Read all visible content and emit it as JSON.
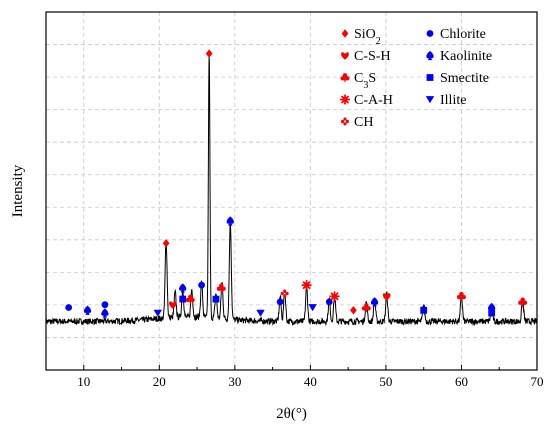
{
  "chart_data": {
    "type": "line",
    "xlabel": "2θ(°)",
    "ylabel": "Intensity",
    "xlim": [
      5,
      70
    ],
    "ylim": [
      0,
      100
    ],
    "x_ticks": [
      10,
      20,
      30,
      40,
      50,
      60,
      70
    ],
    "grid": true,
    "legend_position": "top-right",
    "colors": {
      "red": "#ff0000",
      "blue": "#0000ff",
      "line": "#000000"
    },
    "series": [
      {
        "peaks": [
          {
            "x": 20.9,
            "y": 28
          },
          {
            "x": 26.6,
            "y": 96
          },
          {
            "x": 29.4,
            "y": 35
          },
          {
            "x": 22.1,
            "y": 9
          },
          {
            "x": 23.1,
            "y": 10
          },
          {
            "x": 24.3,
            "y": 10
          },
          {
            "x": 25.6,
            "y": 13
          },
          {
            "x": 27.5,
            "y": 9
          },
          {
            "x": 28.3,
            "y": 13
          },
          {
            "x": 36.0,
            "y": 9
          },
          {
            "x": 36.6,
            "y": 11
          },
          {
            "x": 39.5,
            "y": 13
          },
          {
            "x": 42.5,
            "y": 8
          },
          {
            "x": 43.2,
            "y": 9
          },
          {
            "x": 47.4,
            "y": 7
          },
          {
            "x": 48.5,
            "y": 8
          },
          {
            "x": 50.1,
            "y": 10
          },
          {
            "x": 55.0,
            "y": 6
          },
          {
            "x": 60.0,
            "y": 9
          },
          {
            "x": 64.0,
            "y": 6
          },
          {
            "x": 68.1,
            "y": 8
          }
        ]
      }
    ],
    "markers": [
      {
        "phase": "Chlorite",
        "x": 8.0,
        "y": 7
      },
      {
        "phase": "Kaolinite",
        "x": 10.5,
        "y": 6
      },
      {
        "phase": "Chlorite",
        "x": 12.8,
        "y": 8
      },
      {
        "phase": "Kaolinite",
        "x": 12.8,
        "y": 5
      },
      {
        "phase": "Illite",
        "x": 19.8,
        "y": 5
      },
      {
        "phase": "SiO2",
        "x": 20.9,
        "y": 30
      },
      {
        "phase": "C-S-H",
        "x": 21.8,
        "y": 8
      },
      {
        "phase": "Kaolinite",
        "x": 23.1,
        "y": 14
      },
      {
        "phase": "Smectite",
        "x": 23.1,
        "y": 10
      },
      {
        "phase": "C3S",
        "x": 24.1,
        "y": 10
      },
      {
        "phase": "Chlorite",
        "x": 25.6,
        "y": 15
      },
      {
        "phase": "SiO2",
        "x": 26.6,
        "y": 98
      },
      {
        "phase": "Smectite",
        "x": 27.5,
        "y": 10
      },
      {
        "phase": "C3S",
        "x": 28.2,
        "y": 14
      },
      {
        "phase": "Kaolinite",
        "x": 29.4,
        "y": 38
      },
      {
        "phase": "Illite",
        "x": 33.4,
        "y": 5
      },
      {
        "phase": "Chlorite",
        "x": 36.0,
        "y": 9
      },
      {
        "phase": "CH",
        "x": 36.6,
        "y": 12
      },
      {
        "phase": "C-A-H",
        "x": 39.5,
        "y": 15
      },
      {
        "phase": "Illite",
        "x": 40.3,
        "y": 7
      },
      {
        "phase": "Chlorite",
        "x": 42.5,
        "y": 9
      },
      {
        "phase": "C-A-H",
        "x": 43.2,
        "y": 11
      },
      {
        "phase": "SiO2",
        "x": 45.7,
        "y": 6
      },
      {
        "phase": "C3S",
        "x": 47.4,
        "y": 7
      },
      {
        "phase": "Kaolinite",
        "x": 48.5,
        "y": 9
      },
      {
        "phase": "C-S-H",
        "x": 50.1,
        "y": 11
      },
      {
        "phase": "Smectite",
        "x": 55.0,
        "y": 6
      },
      {
        "phase": "C3S",
        "x": 60.0,
        "y": 11
      },
      {
        "phase": "Kaolinite",
        "x": 64.0,
        "y": 7
      },
      {
        "phase": "Smectite",
        "x": 64.0,
        "y": 5
      },
      {
        "phase": "C3S",
        "x": 68.1,
        "y": 9
      }
    ],
    "legend": [
      {
        "label": "SiO2",
        "main": "SiO",
        "sub": "2",
        "tail": "",
        "symbol": "diamond",
        "color": "#ff0000"
      },
      {
        "label": "C-S-H",
        "main": "C-S-H",
        "sub": "",
        "tail": "",
        "symbol": "heart",
        "color": "#ff0000"
      },
      {
        "label": "C3S",
        "main": "C",
        "sub": "3",
        "tail": "S",
        "symbol": "club",
        "color": "#ff0000"
      },
      {
        "label": "C-A-H",
        "main": "C-A-H",
        "sub": "",
        "tail": "",
        "symbol": "asterisk",
        "color": "#ff0000"
      },
      {
        "label": "CH",
        "main": "CH",
        "sub": "",
        "tail": "",
        "symbol": "flower",
        "color": "#ff0000"
      },
      {
        "label": "Chlorite",
        "main": "Chlorite",
        "sub": "",
        "tail": "",
        "symbol": "circle",
        "color": "#0000ff"
      },
      {
        "label": "Kaolinite",
        "main": "Kaolinite",
        "sub": "",
        "tail": "",
        "symbol": "spade",
        "color": "#0000ff"
      },
      {
        "label": "Smectite",
        "main": "Smectite",
        "sub": "",
        "tail": "",
        "symbol": "square",
        "color": "#0000ff"
      },
      {
        "label": "Illite",
        "main": "Illite",
        "sub": "",
        "tail": "",
        "symbol": "triangle-down",
        "color": "#0000ff"
      }
    ]
  }
}
